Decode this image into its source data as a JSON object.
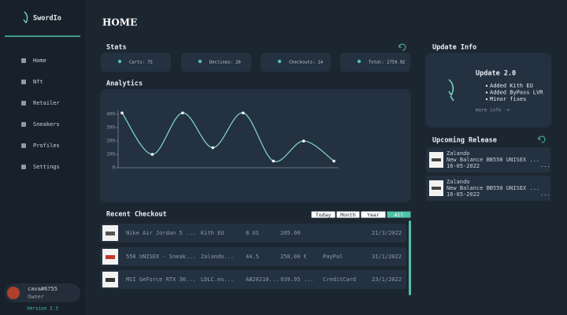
{
  "sidebar": {
    "brand": "SwordIo",
    "nav": [
      "Home",
      "Nft",
      "Retailer",
      "Sneakers",
      "Profiles",
      "Settings"
    ],
    "user": {
      "name": "cava#6755",
      "role": "Owner"
    },
    "version": "Version 2.3"
  },
  "header": {
    "title": "HOME"
  },
  "stats": {
    "title": "Stats",
    "items": [
      "Carts: 75",
      "Declines: 20",
      "Checkouts: 14",
      "Total: 2759.92"
    ]
  },
  "chart_data": {
    "type": "line",
    "title": "Analytics",
    "categories": [
      null,
      null,
      null,
      null,
      null,
      null,
      null,
      null
    ],
    "values": [
      410,
      100,
      410,
      150,
      410,
      50,
      200,
      50
    ],
    "color": "#7fdcc8",
    "ylim": [
      0,
      430
    ],
    "yticks": [
      0,
      100,
      200,
      300,
      400
    ]
  },
  "checkout": {
    "title": "Recent Checkout",
    "filters": [
      "Today",
      "Month",
      "Year",
      "All"
    ],
    "active_filter": "All",
    "rows": [
      [
        "Nike Air Jordan 5 ...",
        "Kith EU",
        "8 US",
        "205.00",
        null,
        "21/3/2022"
      ],
      [
        "550 UNISEX - Sneak...",
        "Zalando...",
        "44.5",
        "250,00 €",
        "PayPal",
        "31/1/2022"
      ],
      [
        "MSI GeForce RTX 30...",
        "LDLC.es...",
        "AB20210...",
        "939.95 ...",
        "CreditCard",
        "23/1/2022"
      ]
    ]
  },
  "update": {
    "title": "Update Info",
    "heading": "Update 2.0",
    "notes": [
      "Added Kith EU",
      "Added ByPass LVR",
      "Minor fixes"
    ],
    "link": "more info ->"
  },
  "upcoming": {
    "title": "Upcoming Release",
    "items": [
      {
        "store": "Zalando",
        "product": "New Balance BB550 UNISEX ...",
        "date": "16-05-2022",
        "more": "..."
      },
      {
        "store": "Zalando",
        "product": "New Balance BB550 UNISEX ...",
        "date": "16-05-2022",
        "more": "..."
      }
    ]
  }
}
